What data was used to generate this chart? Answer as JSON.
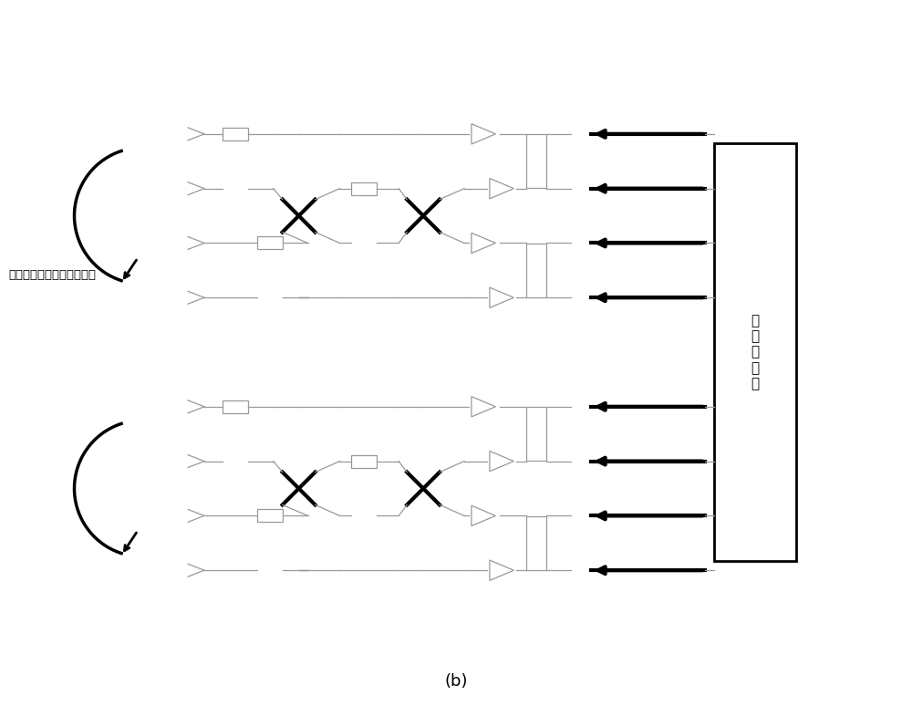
{
  "title": "(b)",
  "label_text": "光纤，偏振编码纠缠光子对",
  "counter_text": "符\n合\n计\n数\n器",
  "bg_color": "#ffffff",
  "line_color": "#aaaaaa",
  "dark_color": "#000000",
  "grid_color": "#888888"
}
